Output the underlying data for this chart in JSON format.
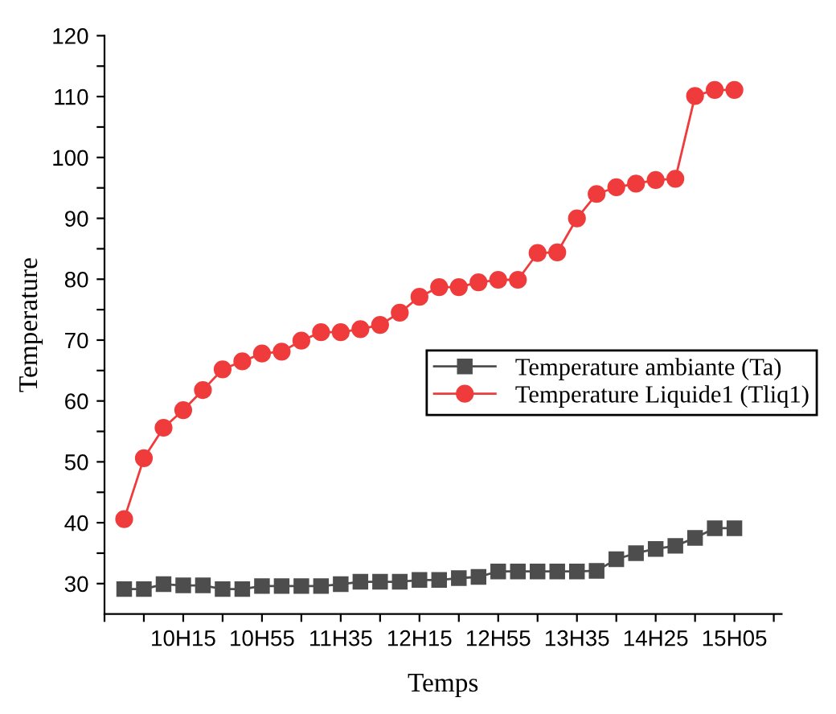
{
  "chart_data": {
    "type": "line",
    "xlabel": "Temps",
    "ylabel": "Temperature",
    "categories": [
      null,
      null,
      null,
      "10H15",
      null,
      null,
      null,
      "10H55",
      null,
      null,
      null,
      "11H35",
      null,
      null,
      null,
      "12H15",
      null,
      null,
      null,
      "12H55",
      null,
      null,
      null,
      "13H35",
      null,
      null,
      null,
      "14H25",
      null,
      null,
      null,
      "15H05"
    ],
    "series": [
      {
        "name": "Temperature ambiante (Ta)",
        "color": "#4d4d4d",
        "marker": "square",
        "values": [
          29.1,
          29.1,
          29.9,
          29.7,
          29.7,
          29.1,
          29.1,
          29.6,
          29.6,
          29.6,
          29.6,
          29.9,
          30.3,
          30.3,
          30.3,
          30.6,
          30.6,
          30.9,
          31.1,
          32.0,
          32.0,
          32.0,
          32.0,
          32.0,
          32.1,
          34.0,
          35.0,
          35.7,
          36.2,
          37.5,
          39.1,
          39.1
        ]
      },
      {
        "name": "Temperature Liquide1 (Tliq1)",
        "color": "#ef3b3b",
        "marker": "circle",
        "values": [
          40.6,
          50.6,
          55.6,
          58.5,
          61.8,
          65.2,
          66.5,
          67.8,
          68.1,
          69.9,
          71.3,
          71.3,
          71.8,
          72.5,
          74.5,
          77.1,
          78.7,
          78.7,
          79.5,
          79.9,
          79.9,
          84.3,
          84.4,
          90.0,
          94.0,
          95.1,
          95.7,
          96.3,
          96.5,
          110.1,
          111.1,
          111.1
        ]
      }
    ],
    "ylim": [
      25,
      120
    ],
    "yticks": [
      30,
      {
        "value": 35,
        "label": null
      },
      40,
      {
        "value": 45,
        "label": null
      },
      50,
      {
        "value": 55,
        "label": null
      },
      60,
      {
        "value": 65,
        "label": null
      },
      70,
      {
        "value": 75,
        "label": null
      },
      80,
      {
        "value": 85,
        "label": null
      },
      90,
      {
        "value": 95,
        "label": null
      },
      100,
      {
        "value": 105,
        "label": null
      },
      110,
      {
        "value": 115,
        "label": null
      },
      120
    ],
    "grid": false,
    "legend": "right"
  }
}
